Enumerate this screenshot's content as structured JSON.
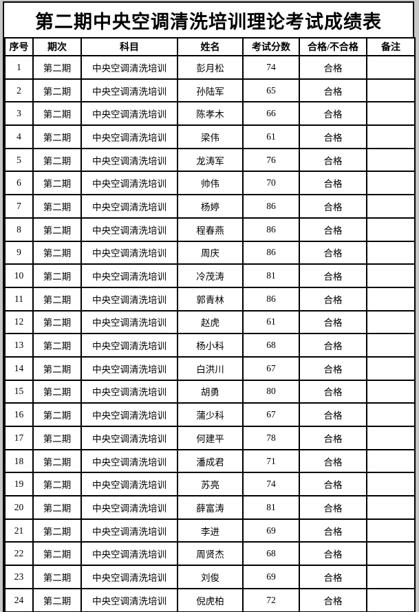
{
  "page": {
    "background_color": "#c8c8c8",
    "sheet_color": "#ffffff",
    "grid_color": "#000000"
  },
  "title": "第二期中央空调清洗培训理论考试成绩表",
  "table": {
    "headers": [
      "序号",
      "期次",
      "科目",
      "姓名",
      "考试分数",
      "合格/不合格",
      "备注"
    ],
    "rows": [
      {
        "no": "1",
        "session": "第二期",
        "subject": "中央空调清洗培训",
        "name": "彭月松",
        "score": "74",
        "result": "合格",
        "remark": ""
      },
      {
        "no": "2",
        "session": "第二期",
        "subject": "中央空调清洗培训",
        "name": "孙陆军",
        "score": "65",
        "result": "合格",
        "remark": ""
      },
      {
        "no": "3",
        "session": "第二期",
        "subject": "中央空调清洗培训",
        "name": "陈孝木",
        "score": "66",
        "result": "合格",
        "remark": ""
      },
      {
        "no": "4",
        "session": "第二期",
        "subject": "中央空调清洗培训",
        "name": "梁伟",
        "score": "61",
        "result": "合格",
        "remark": ""
      },
      {
        "no": "5",
        "session": "第二期",
        "subject": "中央空调清洗培训",
        "name": "龙涛军",
        "score": "76",
        "result": "合格",
        "remark": ""
      },
      {
        "no": "6",
        "session": "第二期",
        "subject": "中央空调清洗培训",
        "name": "帅伟",
        "score": "70",
        "result": "合格",
        "remark": ""
      },
      {
        "no": "7",
        "session": "第二期",
        "subject": "中央空调清洗培训",
        "name": "杨婷",
        "score": "86",
        "result": "合格",
        "remark": ""
      },
      {
        "no": "8",
        "session": "第二期",
        "subject": "中央空调清洗培训",
        "name": "程春燕",
        "score": "86",
        "result": "合格",
        "remark": ""
      },
      {
        "no": "9",
        "session": "第二期",
        "subject": "中央空调清洗培训",
        "name": "周庆",
        "score": "86",
        "result": "合格",
        "remark": ""
      },
      {
        "no": "10",
        "session": "第二期",
        "subject": "中央空调清洗培训",
        "name": "冷茂涛",
        "score": "81",
        "result": "合格",
        "remark": ""
      },
      {
        "no": "11",
        "session": "第二期",
        "subject": "中央空调清洗培训",
        "name": "郭青林",
        "score": "86",
        "result": "合格",
        "remark": ""
      },
      {
        "no": "12",
        "session": "第二期",
        "subject": "中央空调清洗培训",
        "name": "赵虎",
        "score": "61",
        "result": "合格",
        "remark": ""
      },
      {
        "no": "13",
        "session": "第二期",
        "subject": "中央空调清洗培训",
        "name": "杨小科",
        "score": "68",
        "result": "合格",
        "remark": ""
      },
      {
        "no": "14",
        "session": "第二期",
        "subject": "中央空调清洗培训",
        "name": "白洪川",
        "score": "67",
        "result": "合格",
        "remark": ""
      },
      {
        "no": "15",
        "session": "第二期",
        "subject": "中央空调清洗培训",
        "name": "胡勇",
        "score": "80",
        "result": "合格",
        "remark": ""
      },
      {
        "no": "16",
        "session": "第二期",
        "subject": "中央空调清洗培训",
        "name": "蒲少科",
        "score": "67",
        "result": "合格",
        "remark": ""
      },
      {
        "no": "17",
        "session": "第二期",
        "subject": "中央空调清洗培训",
        "name": "何建平",
        "score": "78",
        "result": "合格",
        "remark": ""
      },
      {
        "no": "18",
        "session": "第二期",
        "subject": "中央空调清洗培训",
        "name": "潘成君",
        "score": "71",
        "result": "合格",
        "remark": ""
      },
      {
        "no": "19",
        "session": "第二期",
        "subject": "中央空调清洗培训",
        "name": "苏亮",
        "score": "74",
        "result": "合格",
        "remark": ""
      },
      {
        "no": "20",
        "session": "第二期",
        "subject": "中央空调清洗培训",
        "name": "薛富涛",
        "score": "81",
        "result": "合格",
        "remark": ""
      },
      {
        "no": "21",
        "session": "第二期",
        "subject": "中央空调清洗培训",
        "name": "李进",
        "score": "69",
        "result": "合格",
        "remark": ""
      },
      {
        "no": "22",
        "session": "第二期",
        "subject": "中央空调清洗培训",
        "name": "周贤杰",
        "score": "68",
        "result": "合格",
        "remark": ""
      },
      {
        "no": "23",
        "session": "第二期",
        "subject": "中央空调清洗培训",
        "name": "刘俊",
        "score": "69",
        "result": "合格",
        "remark": ""
      },
      {
        "no": "24",
        "session": "第二期",
        "subject": "中央空调清洗培训",
        "name": "倪虎柏",
        "score": "72",
        "result": "合格",
        "remark": ""
      }
    ]
  }
}
